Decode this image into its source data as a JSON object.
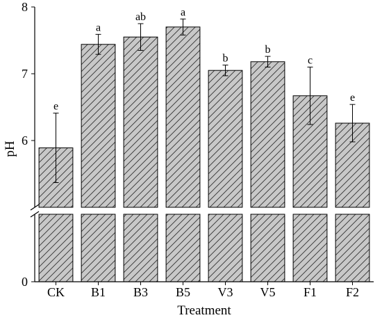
{
  "chart_data": {
    "type": "bar",
    "title": "",
    "xlabel": "Treatment",
    "ylabel": "pH",
    "axis_break": true,
    "ylim": [
      0,
      8
    ],
    "yticks": [
      "8",
      "7",
      "6",
      "0"
    ],
    "categories": [
      "CK",
      "B1",
      "B3",
      "B5",
      "V3",
      "V5",
      "F1",
      "F2"
    ],
    "series": [
      {
        "values": [
          5.89,
          7.44,
          7.55,
          7.7,
          7.05,
          7.18,
          6.67,
          6.26
        ],
        "errors": [
          0.52,
          0.15,
          0.2,
          0.12,
          0.08,
          0.08,
          0.43,
          0.28
        ],
        "labels": [
          "e",
          "a",
          "ab",
          "a",
          "b",
          "b",
          "c",
          "e"
        ]
      }
    ],
    "bar_fill": "#c8c8c8",
    "hatch": "diagonal",
    "grid": false
  }
}
